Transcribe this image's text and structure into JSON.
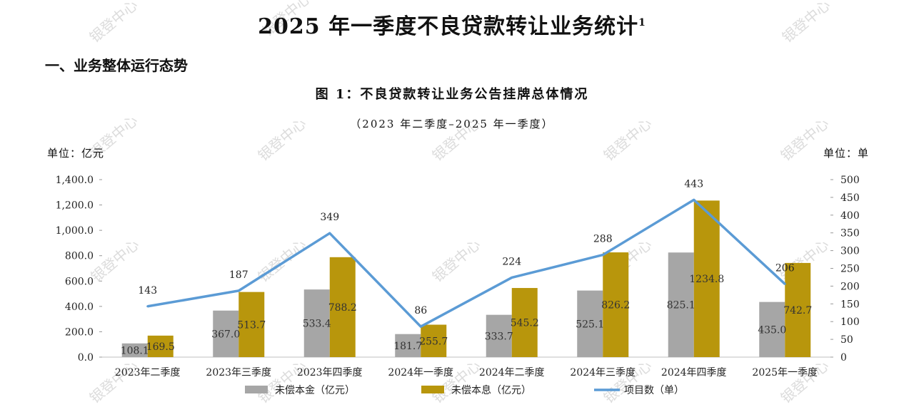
{
  "document": {
    "title": "2025 年一季度不良贷款转让业务统计",
    "title_footnote": "1",
    "section_heading": "一、业务整体运行态势",
    "watermark_text": "银登中心"
  },
  "chart_data": {
    "type": "bar",
    "title": "图 1：不良贷款转让业务公告挂牌总体情况",
    "subtitle": "（2023 年二季度–2025 年一季度）",
    "y_left_unit": "单位：亿元",
    "y_right_unit": "单位：单",
    "categories": [
      "2023年二季度",
      "2023年三季度",
      "2023年四季度",
      "2024年一季度",
      "2024年二季度",
      "2024年三季度",
      "2024年四季度",
      "2025年一季度"
    ],
    "series": [
      {
        "name": "未偿本金（亿元）",
        "type": "bar",
        "axis": "left",
        "color": "#a6a6a6",
        "values": [
          108.1,
          367.0,
          533.4,
          181.7,
          333.7,
          525.1,
          825.1,
          435.0
        ],
        "labels": [
          "108.1",
          "367.0",
          "533.4",
          "181.7",
          "333.7",
          "525.1",
          "825.1",
          "435.0"
        ]
      },
      {
        "name": "未偿本息（亿元）",
        "type": "bar",
        "axis": "left",
        "color": "#b8960c",
        "values": [
          169.5,
          513.7,
          788.2,
          255.7,
          545.2,
          826.2,
          1234.8,
          742.7
        ],
        "labels": [
          "169.5",
          "513.7",
          "788.2",
          "255.7",
          "545.2",
          "826.2",
          "1234.8",
          "742.7"
        ]
      },
      {
        "name": "项目数（单）",
        "type": "line",
        "axis": "right",
        "color": "#5b9bd5",
        "values": [
          143,
          187,
          349,
          86,
          224,
          288,
          443,
          206
        ],
        "labels": [
          "143",
          "187",
          "349",
          "86",
          "224",
          "288",
          "443",
          "206"
        ]
      }
    ],
    "y_left": {
      "min": 0,
      "max": 1400,
      "ticks": [
        "0.0",
        "200.0",
        "400.0",
        "600.0",
        "800.0",
        "1,000.0",
        "1,200.0",
        "1,400.0"
      ],
      "tick_values": [
        0,
        200,
        400,
        600,
        800,
        1000,
        1200,
        1400
      ]
    },
    "y_right": {
      "min": 0,
      "max": 500,
      "ticks": [
        "0",
        "50",
        "100",
        "150",
        "200",
        "250",
        "300",
        "350",
        "400",
        "450",
        "500"
      ],
      "tick_values": [
        0,
        50,
        100,
        150,
        200,
        250,
        300,
        350,
        400,
        450,
        500
      ]
    },
    "grid": false,
    "legend_position": "bottom"
  }
}
